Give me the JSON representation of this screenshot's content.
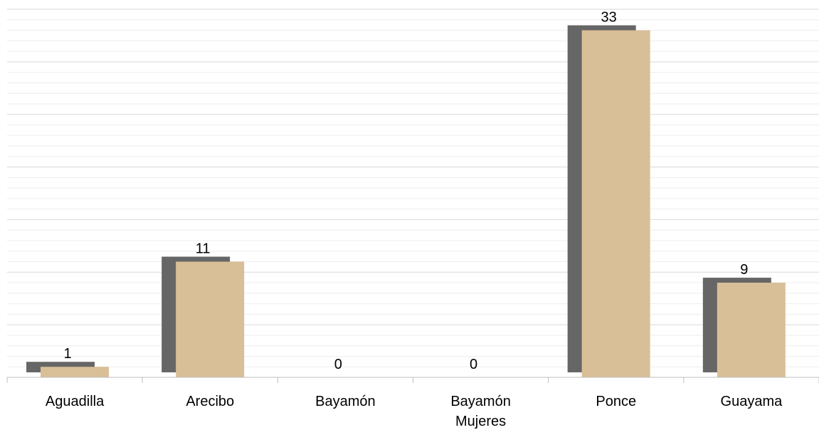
{
  "chart_data": {
    "type": "bar",
    "categories": [
      "Aguadilla",
      "Arecibo",
      "Bayamón",
      "Bayamón Mujeres",
      "Ponce",
      "Guayama"
    ],
    "category_lines": [
      [
        "Aguadilla"
      ],
      [
        "Arecibo"
      ],
      [
        "Bayamón"
      ],
      [
        "Bayamón",
        "Mujeres"
      ],
      [
        "Ponce"
      ],
      [
        "Guayama"
      ]
    ],
    "values": [
      1,
      11,
      0,
      0,
      33,
      9
    ],
    "data_labels": [
      "1",
      "11",
      "0",
      "0",
      "33",
      "9"
    ],
    "ylim": [
      0,
      35
    ],
    "grid": true,
    "legend": "none",
    "bar_style": "3d-shadow"
  },
  "colors": {
    "bar_fill": "#D9BF97",
    "bar_shadow": "#666666",
    "major_grid": "#D9D9D9",
    "minor_grid": "#EDEDED",
    "axis": "#BFBFBF"
  }
}
